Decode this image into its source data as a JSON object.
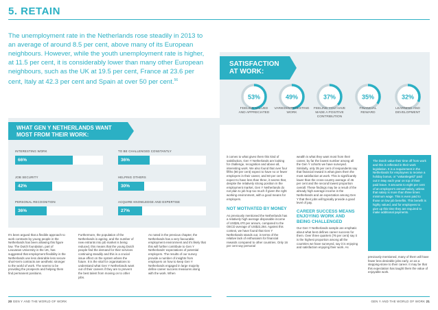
{
  "title": "5. RETAIN",
  "intro": "The unemployment rate in the Netherlands rose steadily in 2013 to an average of around 8.5 per cent, above many of its European neighbours. However, while the youth unemployment rate is higher, at 11.5 per cent, it is considerably lower than many other European neighbours, such as the UK at 19.5 per cent, France at 23.6 per cent, Italy at 42.3 per cent and Spain at over 50 per cent.",
  "intro_ref": "56",
  "satisfaction": {
    "heading_line1": "SATISFACTION",
    "heading_line2": "AT WORK:",
    "items": [
      {
        "pct": "53%",
        "value": 53,
        "label_line1": "FEELING VALUED",
        "label_line2": "AND APPRECIATED",
        "label_line3": ""
      },
      {
        "pct": "49%",
        "value": 49,
        "label_line1": "VARIED/INTERESTING",
        "label_line2": "WORK",
        "label_line3": ""
      },
      {
        "pct": "37%",
        "value": 37,
        "label_line1": "FEELING YOU HAVE",
        "label_line2": "MADE A POSITIVE",
        "label_line3": "CONTRIBUTION"
      },
      {
        "pct": "35%",
        "value": 35,
        "label_line1": "FINANCIAL",
        "label_line2": "REWARD",
        "label_line3": ""
      },
      {
        "pct": "32%",
        "value": 32,
        "label_line1": "LEARNING AND",
        "label_line2": "DEVELOPMENT",
        "label_line3": ""
      }
    ]
  },
  "what": {
    "heading_line1": "WHAT GEN Y NETHERLANDS WANT",
    "heading_line2": "MOST FROM THEIR WORK:",
    "bars": [
      {
        "label": "INTERESTING WORK",
        "pct": "66%",
        "value": 66
      },
      {
        "label": "JOB SECURITY",
        "pct": "42%",
        "value": 42
      },
      {
        "label": "PERSONAL RECOGNITION",
        "pct": "36%",
        "value": 36
      },
      {
        "label": "TO BE CHALLENGED CONSTANTLY",
        "pct": "36%",
        "value": 36
      },
      {
        "label": "HELPING OTHERS",
        "pct": "30%",
        "value": 30
      },
      {
        "label": "ACQUIRE KNOWLEDGE AND EXPERTISE",
        "pct": "27%",
        "value": 27
      }
    ]
  },
  "columns": {
    "col1": "It's been argued that a flexible approach to work contracts by young people in the Netherlands has been allowing this figure low. The Dutch foundation, part of Leuvanan University in the UK, has suggested that employment flexibility in the Netherlands use less desirable less secure short-term contracts are aesthetic stronger to the world of work. The seems to be providing the prospects and helping them find permanent positions.",
    "col2": "Furthermore, the population of the Netherlands is ageing, and the number of new entrants into job market is being reduced, this means that the young Dutch people find the demand for their services continuing steadily and this is a crucial issue effect on the system where the future. It is the vital for organisations to understand what Gen Y Netherlands want out of their careers if they are to prevent the best talent from moving on to other jobs.",
    "col3": "As noted in the previous chapter, the Netherlands has a very favourable employment environment and it's likely that this will further contribute to Gen Y Netherlands' expectations of potential employers. The results of our survey provide a number of insights from employers on how to keep Gen Y Netherlands engaged in large majority define career success measures along with the work. When",
    "col4a": "it comes to what gives them this kind of satisfaction, Gen Y Netherlands are looking for challenge, recognition and above all, interesting work. We also found that over four fifths (80 per cent) expect to have no or fewer employers in their career, and 60 per cent expect to have less than three, it seems that, despite the relatively strong position in the employment market, Gen Y Netherlands do not plan to job hop too much if given the right working environment, with a good means for employers.",
    "col4_head": "NOT MOTIVATED BY MONEY",
    "col4b": "As previously mentioned the Netherlands has a relatively high average disposable income of US$26,470 per annum, compared to the OECD average of US$22,284. Against this context, we have found that Gen Y Netherlands stands out, in terms of the relative lack of enthusiasm for financial rewards compared to other countries. Only 16 per cent say personal",
    "col5a": "wealth is what they want most from their career, by far the lowest number among all the Gen Y cohorts we have surveyed. Similarly, only 35 per cent of respondents say that financial reward is what gives them the most satisfaction at work. This is significantly lower than the cross-country average of 46 per cent and the second lowest proportion overall. These findings may be a result of the already high average income in the Netherlands and an expectation among Gen Y that their jobs will typically provide a good level of pay.",
    "col5_head_line1": "CAREER SUCCESS MEANS",
    "col5_head_line2": "ENJOYING WORK AND",
    "col5_head_line3": "BEING CHALLENGED",
    "col5b": "Our Gen Y Netherlands sample are emphatic about what best defines career success for them. Over three quarters (76 per cent) say it is the highest proportion among all the countries we have surveyed, say it is enjoying and satisfaction enjoying their work. As",
    "col6": "previously mentioned, many of them will have fewer less desirable jobs early, on as a stepping-stone to their career. It may be that this expectation has taught them the value of enjoyable work."
  },
  "quote": "The Dutch value their time off from work and this is reflected in their work legislation. It is a requirement in the Netherlands for employees to receive a holiday bonus, or \"vakantiegeld\" paid out in May each year on top of their paid leave. It amounts to eight per cent of an employee's annual salary, unless that salary is more than three times minimum wage. This is even paid to those on low job benefits. This benefit is highly valued, and for employees to give up this time they are required to make additional payments.",
  "footer": {
    "left_num": "20",
    "left_text": "GEN Y AND THE WORLD OF WORK",
    "right_text": "GEN Y AND THE WORLD OF WORK",
    "right_num": "21"
  },
  "colors": {
    "accent": "#2bb0c4",
    "panel": "#e9eff2",
    "ring": "#c9d6db"
  }
}
